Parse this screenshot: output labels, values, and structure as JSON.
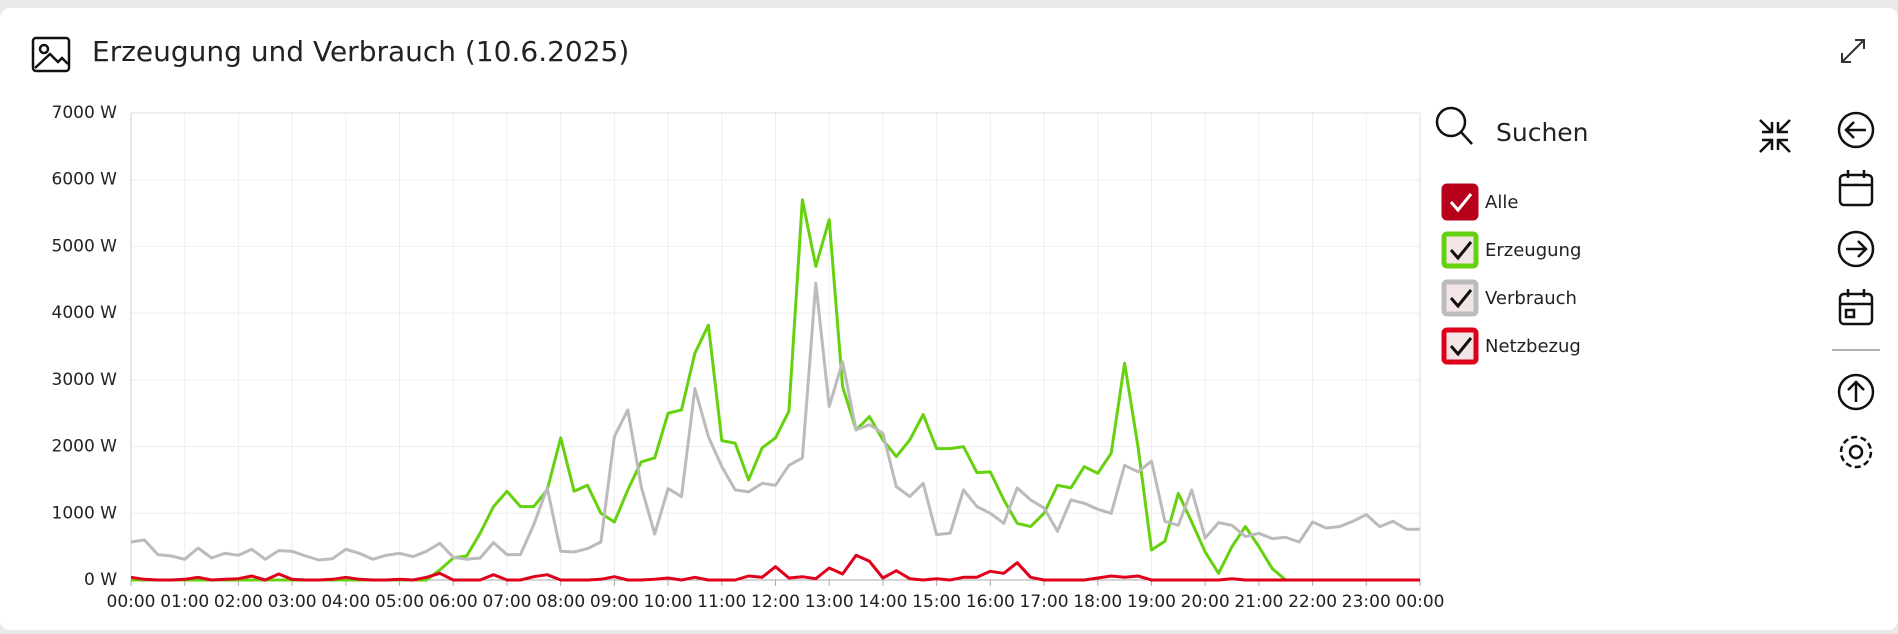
{
  "header": {
    "title": "Erzeugung und Verbrauch (10.6.2025)"
  },
  "legend_panel": {
    "search": "Suchen",
    "all": "Alle",
    "all_color": "#b8001a"
  },
  "chart_data": {
    "type": "line",
    "x": [
      0,
      0.25,
      0.5,
      0.75,
      1,
      1.25,
      1.5,
      1.75,
      2,
      2.25,
      2.5,
      2.75,
      3,
      3.25,
      3.5,
      3.75,
      4,
      4.25,
      4.5,
      4.75,
      5,
      5.25,
      5.5,
      5.75,
      6,
      6.25,
      6.5,
      6.75,
      7,
      7.25,
      7.5,
      7.75,
      8,
      8.25,
      8.5,
      8.75,
      9,
      9.25,
      9.5,
      9.75,
      10,
      10.25,
      10.5,
      10.75,
      11,
      11.25,
      11.5,
      11.75,
      12,
      12.25,
      12.5,
      12.75,
      13,
      13.25,
      13.5,
      13.75,
      14,
      14.25,
      14.5,
      14.75,
      15,
      15.25,
      15.5,
      15.75,
      16,
      16.25,
      16.5,
      16.75,
      17,
      17.25,
      17.5,
      17.75,
      18,
      18.25,
      18.5,
      18.75,
      19,
      19.25,
      19.5,
      19.75,
      20,
      20.25,
      20.5,
      20.75,
      21,
      21.25,
      21.5,
      21.75,
      22,
      22.25,
      22.5,
      22.75,
      23,
      23.25,
      23.5,
      23.75,
      24
    ],
    "series": [
      {
        "name": "Erzeugung",
        "color": "#66d10f",
        "values": [
          0,
          0,
          0,
          0,
          0,
          0,
          0,
          0,
          0,
          0,
          0,
          0,
          0,
          0,
          0,
          0,
          0,
          0,
          0,
          0,
          0,
          0,
          0,
          150,
          330,
          360,
          700,
          1100,
          1330,
          1100,
          1100,
          1350,
          2130,
          1330,
          1420,
          1000,
          870,
          1350,
          1770,
          1830,
          2500,
          2550,
          3400,
          3820,
          2090,
          2050,
          1500,
          1980,
          2130,
          2530,
          5700,
          4700,
          5400,
          2900,
          2250,
          2450,
          2100,
          1850,
          2100,
          2480,
          1970,
          1970,
          2000,
          1610,
          1620,
          1200,
          850,
          800,
          1000,
          1420,
          1380,
          1700,
          1600,
          1900,
          3250,
          2000,
          450,
          580,
          1300,
          870,
          420,
          100,
          500,
          800,
          500,
          170,
          0,
          0,
          0,
          0,
          0,
          0,
          0,
          0,
          0,
          0,
          0
        ]
      },
      {
        "name": "Verbrauch",
        "color": "#bbbbbb",
        "values": [
          570,
          600,
          380,
          360,
          310,
          480,
          330,
          400,
          370,
          460,
          310,
          440,
          430,
          360,
          300,
          320,
          460,
          400,
          310,
          370,
          400,
          350,
          430,
          550,
          340,
          310,
          330,
          560,
          380,
          380,
          830,
          1380,
          430,
          420,
          470,
          570,
          2150,
          2550,
          1400,
          690,
          1370,
          1250,
          2870,
          2150,
          1700,
          1350,
          1320,
          1450,
          1420,
          1720,
          1830,
          4450,
          2600,
          3270,
          2250,
          2330,
          2200,
          1400,
          1250,
          1450,
          680,
          700,
          1350,
          1100,
          1000,
          850,
          1380,
          1200,
          1080,
          730,
          1200,
          1150,
          1060,
          1000,
          1720,
          1620,
          1780,
          880,
          820,
          1350,
          630,
          860,
          820,
          650,
          700,
          620,
          640,
          570,
          870,
          780,
          800,
          880,
          980,
          800,
          880,
          760,
          760
        ]
      },
      {
        "name": "Netzbezug",
        "color": "#e0001b",
        "values": [
          40,
          10,
          0,
          0,
          10,
          40,
          0,
          10,
          20,
          60,
          0,
          90,
          10,
          0,
          0,
          10,
          40,
          10,
          0,
          0,
          10,
          0,
          40,
          100,
          0,
          0,
          0,
          80,
          0,
          0,
          50,
          80,
          0,
          0,
          0,
          10,
          50,
          0,
          0,
          10,
          30,
          0,
          40,
          0,
          0,
          0,
          60,
          40,
          200,
          30,
          50,
          20,
          180,
          90,
          370,
          280,
          30,
          140,
          20,
          0,
          20,
          0,
          40,
          40,
          130,
          100,
          260,
          40,
          0,
          0,
          0,
          0,
          30,
          60,
          40,
          60,
          0,
          0,
          0,
          0,
          0,
          0,
          20,
          0,
          0,
          0,
          0,
          0,
          0,
          0,
          0,
          0,
          0,
          0,
          0,
          0,
          0
        ]
      }
    ],
    "xlim": [
      0,
      24
    ],
    "xticks": [
      {
        "value": 0,
        "label": "00:00"
      },
      {
        "value": 1,
        "label": "01:00"
      },
      {
        "value": 2,
        "label": "02:00"
      },
      {
        "value": 3,
        "label": "03:00"
      },
      {
        "value": 4,
        "label": "04:00"
      },
      {
        "value": 5,
        "label": "05:00"
      },
      {
        "value": 6,
        "label": "06:00"
      },
      {
        "value": 7,
        "label": "07:00"
      },
      {
        "value": 8,
        "label": "08:00"
      },
      {
        "value": 9,
        "label": "09:00"
      },
      {
        "value": 10,
        "label": "10:00"
      },
      {
        "value": 11,
        "label": "11:00"
      },
      {
        "value": 12,
        "label": "12:00"
      },
      {
        "value": 13,
        "label": "13:00"
      },
      {
        "value": 14,
        "label": "14:00"
      },
      {
        "value": 15,
        "label": "15:00"
      },
      {
        "value": 16,
        "label": "16:00"
      },
      {
        "value": 17,
        "label": "17:00"
      },
      {
        "value": 18,
        "label": "18:00"
      },
      {
        "value": 19,
        "label": "19:00"
      },
      {
        "value": 20,
        "label": "20:00"
      },
      {
        "value": 21,
        "label": "21:00"
      },
      {
        "value": 22,
        "label": "22:00"
      },
      {
        "value": 23,
        "label": "23:00"
      },
      {
        "value": 24,
        "label": "00:00"
      }
    ],
    "ylim": [
      0,
      7000
    ],
    "yticks": [
      {
        "value": 0,
        "label": "0 W"
      },
      {
        "value": 1000,
        "label": "1000 W"
      },
      {
        "value": 2000,
        "label": "2000 W"
      },
      {
        "value": 3000,
        "label": "3000 W"
      },
      {
        "value": 4000,
        "label": "4000 W"
      },
      {
        "value": 5000,
        "label": "5000 W"
      },
      {
        "value": 6000,
        "label": "6000 W"
      },
      {
        "value": 7000,
        "label": "7000 W"
      }
    ],
    "grid": true
  }
}
